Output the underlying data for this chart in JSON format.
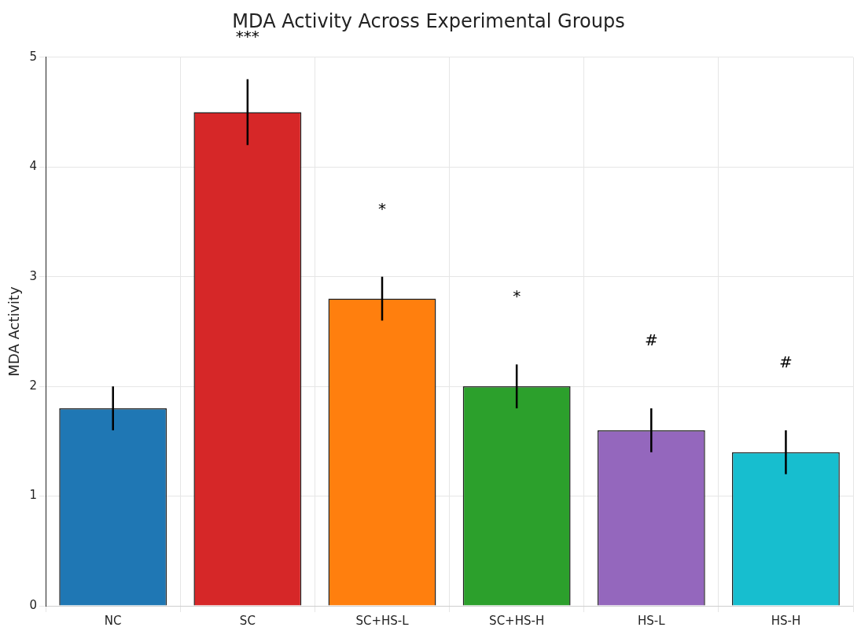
{
  "chart_data": {
    "type": "bar",
    "title": "MDA Activity Across Experimental Groups",
    "ylabel": "MDA Activity",
    "categories": [
      "NC",
      "SC",
      "SC+HS-L",
      "SC+HS-H",
      "HS-L",
      "HS-H"
    ],
    "values": [
      1.8,
      4.5,
      2.8,
      2.0,
      1.6,
      1.4
    ],
    "colors": [
      "#1f77b4",
      "#d62728",
      "#ff7f0e",
      "#2ca02c",
      "#9467bd",
      "#17becf"
    ],
    "errors": [
      0.2,
      0.3,
      0.2,
      0.2,
      0.2,
      0.2
    ],
    "ylim": [
      0,
      5
    ],
    "yticks": [
      0,
      1,
      2,
      3,
      4,
      5
    ],
    "grid": true,
    "annotations": [
      "***",
      "*",
      "*",
      "#",
      "#"
    ]
  }
}
